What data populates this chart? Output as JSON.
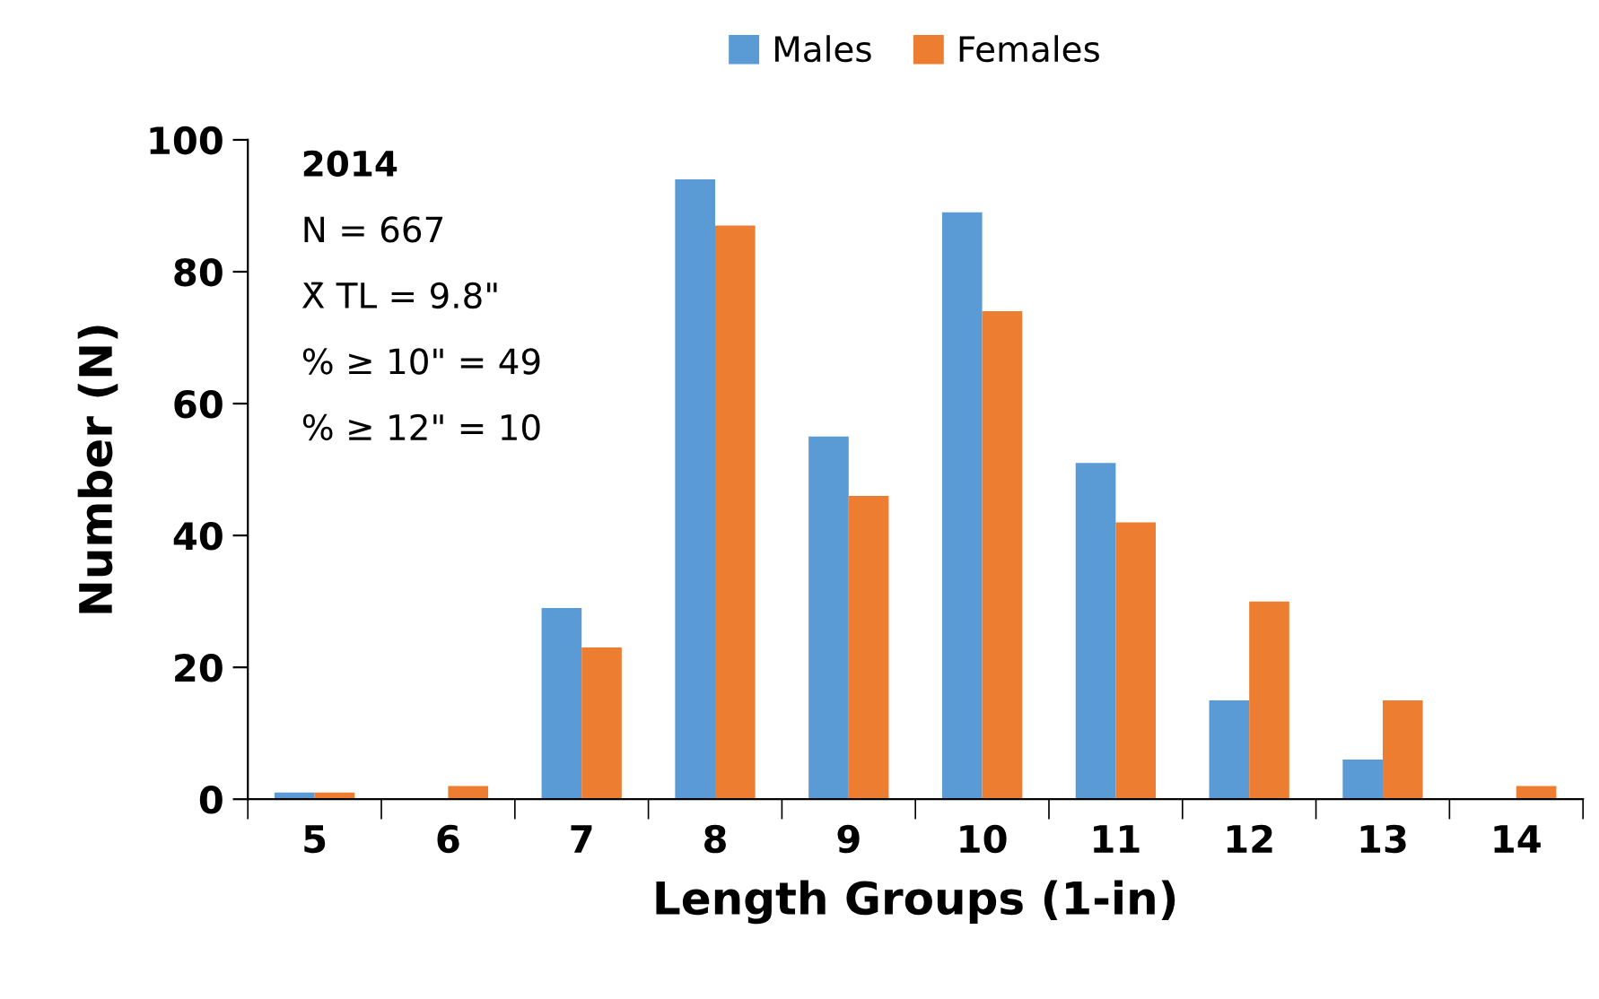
{
  "chart_data": {
    "type": "bar",
    "xlabel": "Length Groups (1-in)",
    "ylabel": "Number (N)",
    "categories": [
      "5",
      "6",
      "7",
      "8",
      "9",
      "10",
      "11",
      "12",
      "13",
      "14"
    ],
    "series": [
      {
        "name": "Males",
        "color": "#5b9bd5",
        "values": [
          1,
          0,
          29,
          94,
          55,
          89,
          51,
          15,
          6,
          0
        ]
      },
      {
        "name": "Females",
        "color": "#ed7d31",
        "values": [
          1,
          2,
          23,
          87,
          46,
          74,
          42,
          30,
          15,
          2
        ]
      }
    ],
    "ylim": [
      0,
      100
    ],
    "yticks": [
      0,
      20,
      40,
      60,
      80,
      100
    ],
    "grid": false,
    "legend": "top",
    "annotations": [
      "2014",
      "N = 667",
      "X̄ TL = 9.8\"",
      "% ≥ 10\" = 49",
      "% ≥ 12\" = 10"
    ]
  }
}
